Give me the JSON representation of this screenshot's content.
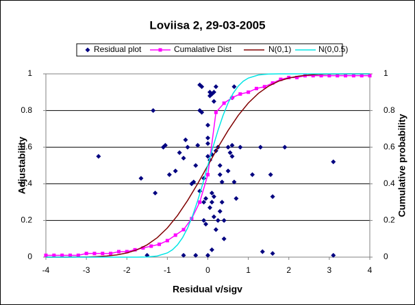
{
  "chart_data": {
    "type": "scatter",
    "title": "Loviisa 2, 29-03-2005",
    "x_label": "Residual v/sigv",
    "y_label": "Adjustability",
    "y2_label": "Cumulative probability",
    "xlim": [
      -4,
      4
    ],
    "xticks": [
      -4,
      -3,
      -2,
      -1,
      0,
      1,
      2,
      3,
      4
    ],
    "ylim": [
      0,
      1
    ],
    "yticks": [
      0,
      0.2,
      0.4,
      0.6,
      0.8,
      1
    ],
    "y2lim": [
      0,
      1
    ],
    "y2ticks": [
      0,
      0.2,
      0.4,
      0.6,
      0.8,
      1
    ],
    "grid": true,
    "legend": "top",
    "series": [
      {
        "name": "Residual plot",
        "type": "scatter",
        "color": "#000080",
        "x": [
          -2.7,
          -1.35,
          -1.65,
          -1.3,
          -1.05,
          -1.1,
          -0.95,
          -0.8,
          -0.7,
          -0.6,
          -0.55,
          -0.5,
          -0.4,
          -0.35,
          -0.3,
          -0.25,
          -0.2,
          -0.2,
          -0.15,
          -0.1,
          -0.1,
          -0.05,
          0,
          0,
          0,
          0.05,
          0.05,
          0.1,
          0.15,
          0.15,
          0.05,
          0.1,
          0.1,
          0.15,
          0.1,
          0.05,
          0.15,
          0.2,
          0.2,
          0.25,
          0.3,
          0.3,
          0.35,
          0.35,
          0.3,
          0.4,
          0.4,
          0.5,
          0.5,
          0.55,
          0.6,
          0.6,
          0.65,
          0.6,
          0.65,
          0.7,
          0.8,
          1.1,
          1.3,
          1.55,
          1.6,
          1.9,
          3.1,
          1.35,
          1.6,
          3.1,
          -0.6,
          -1.5,
          -0.3,
          -0.1,
          -0.05,
          0.25,
          -0.2,
          0,
          -0.15,
          0.2,
          0.1,
          0
        ],
        "values": [
          0.55,
          0.8,
          0.43,
          0.35,
          0.61,
          0.6,
          0.45,
          0.47,
          0.57,
          0.54,
          0.64,
          0.6,
          0.4,
          0.41,
          0.5,
          0.61,
          0.8,
          0.94,
          0.93,
          0.43,
          0.3,
          0.32,
          0.55,
          0.62,
          0.65,
          0.9,
          0.88,
          0.89,
          0.9,
          0.85,
          0.53,
          0.56,
          0.35,
          0.33,
          0.3,
          0.27,
          0.22,
          0.15,
          0.58,
          0.6,
          0.5,
          0.45,
          0.41,
          0.3,
          0.25,
          0.2,
          0.1,
          0.6,
          0.47,
          0.57,
          0.55,
          0.61,
          0.93,
          0.87,
          0.41,
          0.32,
          0.6,
          0.45,
          0.6,
          0.45,
          0.33,
          0.6,
          0.52,
          0.03,
          0.02,
          0.01,
          0.01,
          0.01,
          0.01,
          0.2,
          0.18,
          0.2,
          0.36,
          0.72,
          0.79,
          0.93,
          0.04,
          0.01
        ]
      },
      {
        "name": "Cumalative Dist",
        "type": "line",
        "marker": true,
        "color": "#ff00ff",
        "axis": "y2",
        "x": [
          -4,
          -3.8,
          -3.6,
          -3.4,
          -3.2,
          -3,
          -2.8,
          -2.6,
          -2.4,
          -2.2,
          -2,
          -1.8,
          -1.6,
          -1.4,
          -1.2,
          -1,
          -0.8,
          -0.6,
          -0.4,
          -0.2,
          0,
          0.2,
          0.4,
          0.6,
          0.8,
          1,
          1.2,
          1.4,
          1.6,
          1.8,
          2,
          2.2,
          2.4,
          2.6,
          2.8,
          3,
          3.2,
          3.4,
          3.6,
          3.8,
          4
        ],
        "values": [
          0.01,
          0.01,
          0.01,
          0.01,
          0.01,
          0.02,
          0.02,
          0.02,
          0.02,
          0.03,
          0.03,
          0.04,
          0.05,
          0.06,
          0.07,
          0.09,
          0.12,
          0.15,
          0.21,
          0.3,
          0.45,
          0.79,
          0.84,
          0.87,
          0.89,
          0.9,
          0.92,
          0.93,
          0.95,
          0.97,
          0.98,
          0.98,
          0.99,
          0.99,
          0.99,
          0.99,
          0.99,
          0.99,
          0.99,
          0.99,
          0.99
        ]
      },
      {
        "name": "N(0,1)",
        "type": "line",
        "marker": false,
        "color": "#800000",
        "axis": "y2",
        "x": [
          -4,
          -3.75,
          -3.5,
          -3.25,
          -3,
          -2.75,
          -2.5,
          -2.25,
          -2,
          -1.75,
          -1.5,
          -1.25,
          -1,
          -0.75,
          -0.5,
          -0.25,
          0,
          0.25,
          0.5,
          0.75,
          1,
          1.25,
          1.5,
          1.75,
          2,
          2.25,
          2.5,
          2.75,
          3,
          3.25,
          3.5,
          3.75,
          4
        ],
        "values": [
          0,
          0,
          0,
          0.001,
          0.001,
          0.003,
          0.006,
          0.012,
          0.023,
          0.04,
          0.067,
          0.106,
          0.159,
          0.227,
          0.309,
          0.401,
          0.5,
          0.599,
          0.691,
          0.773,
          0.841,
          0.894,
          0.933,
          0.96,
          0.977,
          0.988,
          0.994,
          0.997,
          0.999,
          0.999,
          1,
          1,
          1
        ]
      },
      {
        "name": "N(0,0.5)",
        "type": "line",
        "marker": false,
        "color": "#00e5e5",
        "axis": "y2",
        "x": [
          -4,
          -3.5,
          -3,
          -2.5,
          -2,
          -1.75,
          -1.5,
          -1.25,
          -1,
          -0.875,
          -0.75,
          -0.625,
          -0.5,
          -0.375,
          -0.25,
          -0.125,
          0,
          0.125,
          0.25,
          0.375,
          0.5,
          0.625,
          0.75,
          0.875,
          1,
          1.25,
          1.5,
          1.75,
          2,
          2.5,
          3,
          3.5,
          4
        ],
        "values": [
          0,
          0,
          0,
          0,
          0,
          0,
          0.001,
          0.006,
          0.023,
          0.04,
          0.067,
          0.106,
          0.159,
          0.227,
          0.309,
          0.401,
          0.5,
          0.599,
          0.691,
          0.773,
          0.841,
          0.894,
          0.933,
          0.96,
          0.977,
          0.994,
          0.999,
          1,
          1,
          1,
          1,
          1,
          1
        ]
      }
    ]
  }
}
